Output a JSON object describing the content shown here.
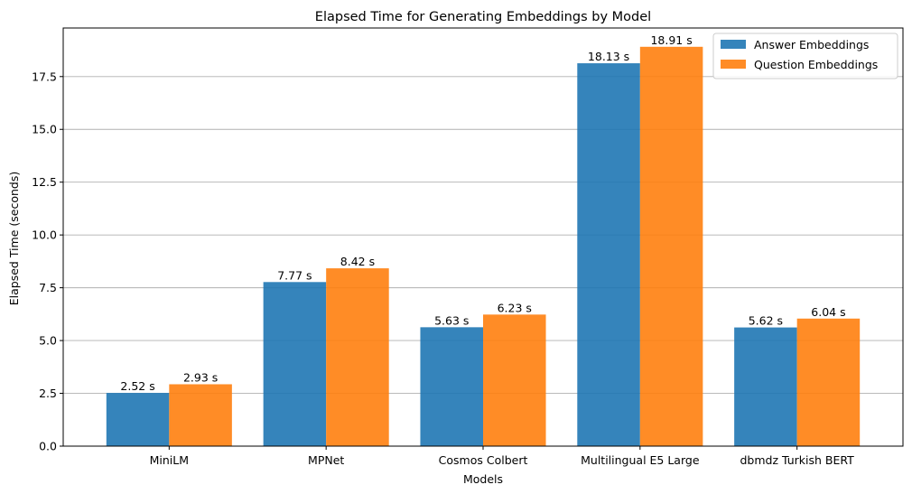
{
  "chart_data": {
    "type": "bar",
    "title": "Elapsed Time for Generating Embeddings by Model",
    "xlabel": "Models",
    "ylabel": "Elapsed Time (seconds)",
    "categories": [
      "MiniLM",
      "MPNet",
      "Cosmos Colbert",
      "Multilingual E5 Large",
      "dbmdz Turkish BERT"
    ],
    "series": [
      {
        "name": "Answer Embeddings",
        "color": "#1f77b4",
        "values": [
          2.52,
          7.77,
          5.63,
          18.13,
          5.62
        ],
        "labels": [
          "2.52 s",
          "7.77 s",
          "5.63 s",
          "18.13 s",
          "5.62 s"
        ]
      },
      {
        "name": "Question Embeddings",
        "color": "#ff7f0e",
        "values": [
          2.93,
          8.42,
          6.23,
          18.91,
          6.04
        ],
        "labels": [
          "2.93 s",
          "8.42 s",
          "6.23 s",
          "18.91 s",
          "6.04 s"
        ]
      }
    ],
    "bar_opacity": 0.9,
    "ylim": [
      0,
      19.8
    ],
    "yticks": [
      0,
      2.5,
      5,
      7.5,
      10,
      12.5,
      15,
      17.5
    ],
    "ytick_labels": [
      "0.0",
      "2.5",
      "5.0",
      "7.5",
      "10.0",
      "12.5",
      "15.0",
      "17.5"
    ],
    "grid": "y",
    "legend_position": "top-right"
  }
}
